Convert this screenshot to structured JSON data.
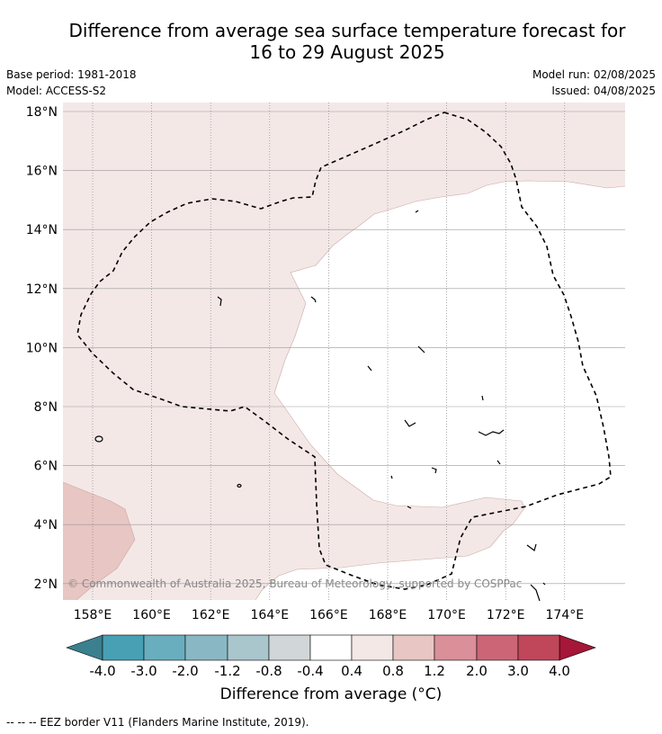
{
  "title": {
    "line1": "Difference from average sea surface temperature forecast for",
    "line2": "16 to 29 August 2025"
  },
  "meta": {
    "base_period": "Base period: 1981-2018",
    "model": "Model: ACCESS-S2",
    "model_run": "Model run: 02/08/2025",
    "issued": "Issued: 04/08/2025"
  },
  "map": {
    "lat_labels": [
      "18°N",
      "16°N",
      "14°N",
      "12°N",
      "10°N",
      "8°N",
      "6°N",
      "4°N",
      "2°N"
    ],
    "lon_labels": [
      "158°E",
      "160°E",
      "162°E",
      "164°E",
      "166°E",
      "168°E",
      "170°E",
      "172°E",
      "174°E"
    ],
    "lat_values": [
      18,
      16,
      14,
      12,
      10,
      8,
      6,
      4,
      2
    ],
    "lon_values": [
      158,
      160,
      162,
      164,
      166,
      168,
      170,
      172,
      174
    ],
    "copyright": "© Commonwealth of Australia 2025, Bureau of Meteorology, supported by COSPPac",
    "colors": {
      "anomaly_0_4_to_0_8": "#f4e8e7",
      "anomaly_0_8_to_1_2": "#e8c6c3",
      "anomaly_neutral": "#ffffff",
      "eez_border": "#000000"
    }
  },
  "colorbar": {
    "ticks": [
      "-4.0",
      "-3.0",
      "-2.0",
      "-1.2",
      "-0.8",
      "-0.4",
      "0.4",
      "0.8",
      "1.2",
      "2.0",
      "3.0",
      "4.0"
    ],
    "under_color": "#3b808f",
    "over_color": "#a61637",
    "bin_colors": [
      "#48a0b5",
      "#68aebf",
      "#89b8c4",
      "#a8c6cb",
      "#d1d7d9",
      "#ffffff",
      "#f4e8e7",
      "#e8c6c3",
      "#da8f99",
      "#cc6676",
      "#c0475a"
    ],
    "title": "Difference from average (°C)"
  },
  "footer": {
    "legend": "-- -- -- EEZ border V11 (Flanders Marine Institute, 2019)."
  }
}
